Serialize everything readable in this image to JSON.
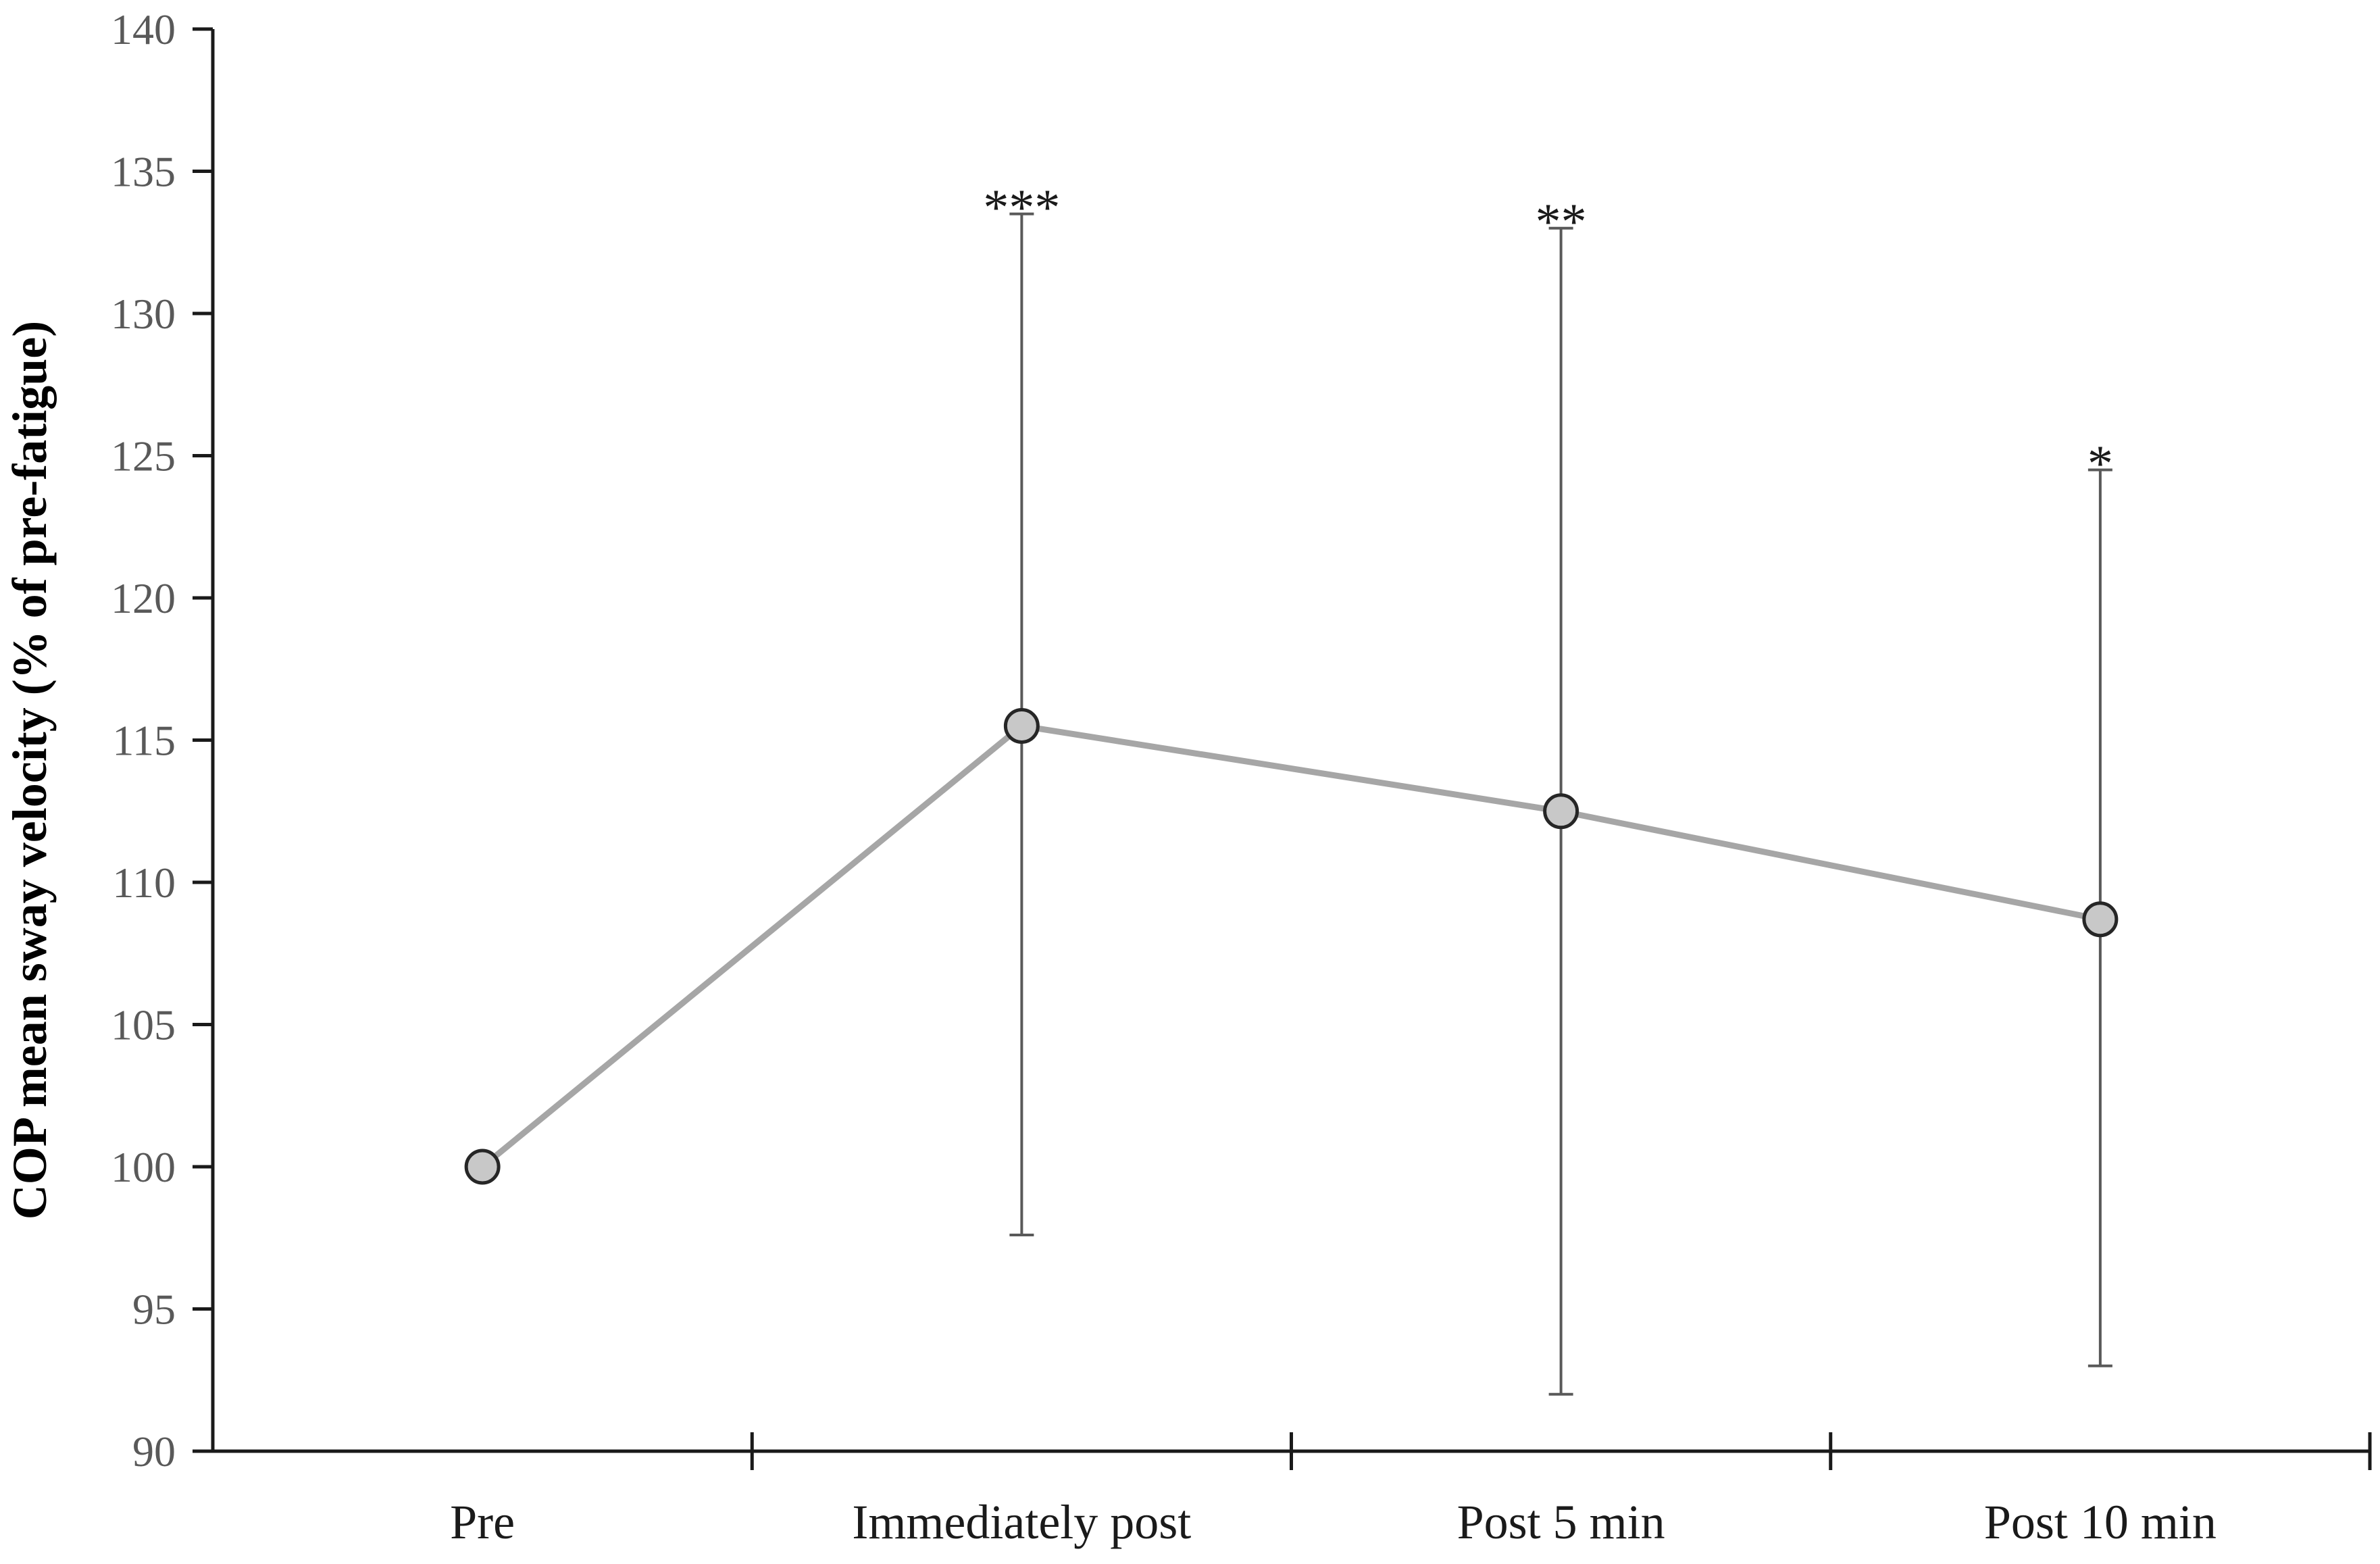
{
  "chart_data": {
    "type": "line",
    "title": "",
    "xlabel": "",
    "ylabel": "COP mean sway velocity (% of pre-fatigue)",
    "ylim": [
      90,
      140
    ],
    "yticks": [
      90,
      95,
      100,
      105,
      110,
      115,
      120,
      125,
      130,
      135,
      140
    ],
    "categories": [
      "Pre",
      "Immediately post",
      "Post 5 min",
      "Post 10 min"
    ],
    "series": [
      {
        "values": [
          100,
          115.5,
          112.5,
          108.7
        ],
        "error_low": [
          null,
          97.6,
          92.0,
          93.0
        ],
        "error_high": [
          null,
          133.5,
          133.0,
          124.5
        ],
        "significance": [
          "",
          "***",
          "**",
          "*"
        ]
      }
    ],
    "grid": false,
    "colors": {
      "line": "#a6a6a6",
      "marker_fill": "#c8c8c8",
      "marker_edge": "#262626",
      "axis": "#1a1a1a",
      "error_bar": "#595959"
    }
  }
}
